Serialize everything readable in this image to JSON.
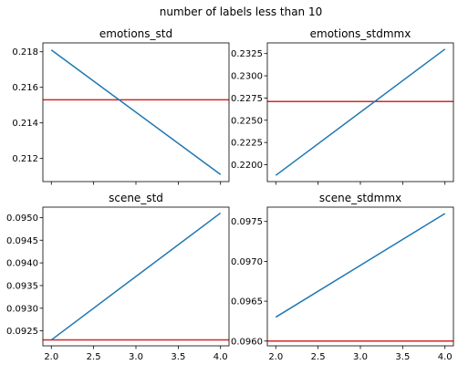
{
  "figure": {
    "suptitle": "number of labels less than 10"
  },
  "colors": {
    "series": "#1f77b4",
    "reference": "#d62728"
  },
  "chart_data": [
    {
      "type": "line",
      "title": "emotions_std",
      "x": [
        2,
        4
      ],
      "series": [
        {
          "values": [
            0.2181,
            0.2111
          ]
        }
      ],
      "reference_line": 0.2153,
      "xlim": [
        1.9,
        4.1
      ],
      "ylim": [
        0.2107,
        0.2185
      ],
      "xticks": [
        2.0,
        2.5,
        3.0,
        3.5,
        4.0
      ],
      "xtick_labels": [],
      "yticks": [
        0.212,
        0.214,
        0.216,
        0.218
      ],
      "ytick_labels": [
        "0.212",
        "0.214",
        "0.216",
        "0.218"
      ],
      "grid": false
    },
    {
      "type": "line",
      "title": "emotions_stdmmx",
      "x": [
        2,
        4
      ],
      "series": [
        {
          "values": [
            0.2188,
            0.233
          ]
        }
      ],
      "reference_line": 0.2271,
      "xlim": [
        1.9,
        4.1
      ],
      "ylim": [
        0.2181,
        0.2337
      ],
      "xticks": [
        2.0,
        2.5,
        3.0,
        3.5,
        4.0
      ],
      "xtick_labels": [],
      "yticks": [
        0.22,
        0.2225,
        0.225,
        0.2275,
        0.23,
        0.2325
      ],
      "ytick_labels": [
        "0.2200",
        "0.2225",
        "0.2250",
        "0.2275",
        "0.2300",
        "0.2325"
      ],
      "grid": false
    },
    {
      "type": "line",
      "title": "scene_std",
      "x": [
        2,
        4
      ],
      "series": [
        {
          "values": [
            0.0923,
            0.0951
          ]
        }
      ],
      "reference_line": 0.0923,
      "xlim": [
        1.9,
        4.1
      ],
      "ylim": [
        0.09217,
        0.09523
      ],
      "xticks": [
        2.0,
        2.5,
        3.0,
        3.5,
        4.0
      ],
      "xtick_labels": [
        "2.0",
        "2.5",
        "3.0",
        "3.5",
        "4.0"
      ],
      "yticks": [
        0.0925,
        0.093,
        0.0935,
        0.094,
        0.0945,
        0.095
      ],
      "ytick_labels": [
        "0.0925",
        "0.0930",
        "0.0935",
        "0.0940",
        "0.0945",
        "0.0950"
      ],
      "grid": false
    },
    {
      "type": "line",
      "title": "scene_stdmmx",
      "x": [
        2,
        4
      ],
      "series": [
        {
          "values": [
            0.0963,
            0.0976
          ]
        }
      ],
      "reference_line": 0.096,
      "xlim": [
        1.9,
        4.1
      ],
      "ylim": [
        0.09594,
        0.09768
      ],
      "xticks": [
        2.0,
        2.5,
        3.0,
        3.5,
        4.0
      ],
      "xtick_labels": [
        "2.0",
        "2.5",
        "3.0",
        "3.5",
        "4.0"
      ],
      "yticks": [
        0.096,
        0.0965,
        0.097,
        0.0975
      ],
      "ytick_labels": [
        "0.0960",
        "0.0965",
        "0.0970",
        "0.0975"
      ],
      "grid": false
    }
  ]
}
